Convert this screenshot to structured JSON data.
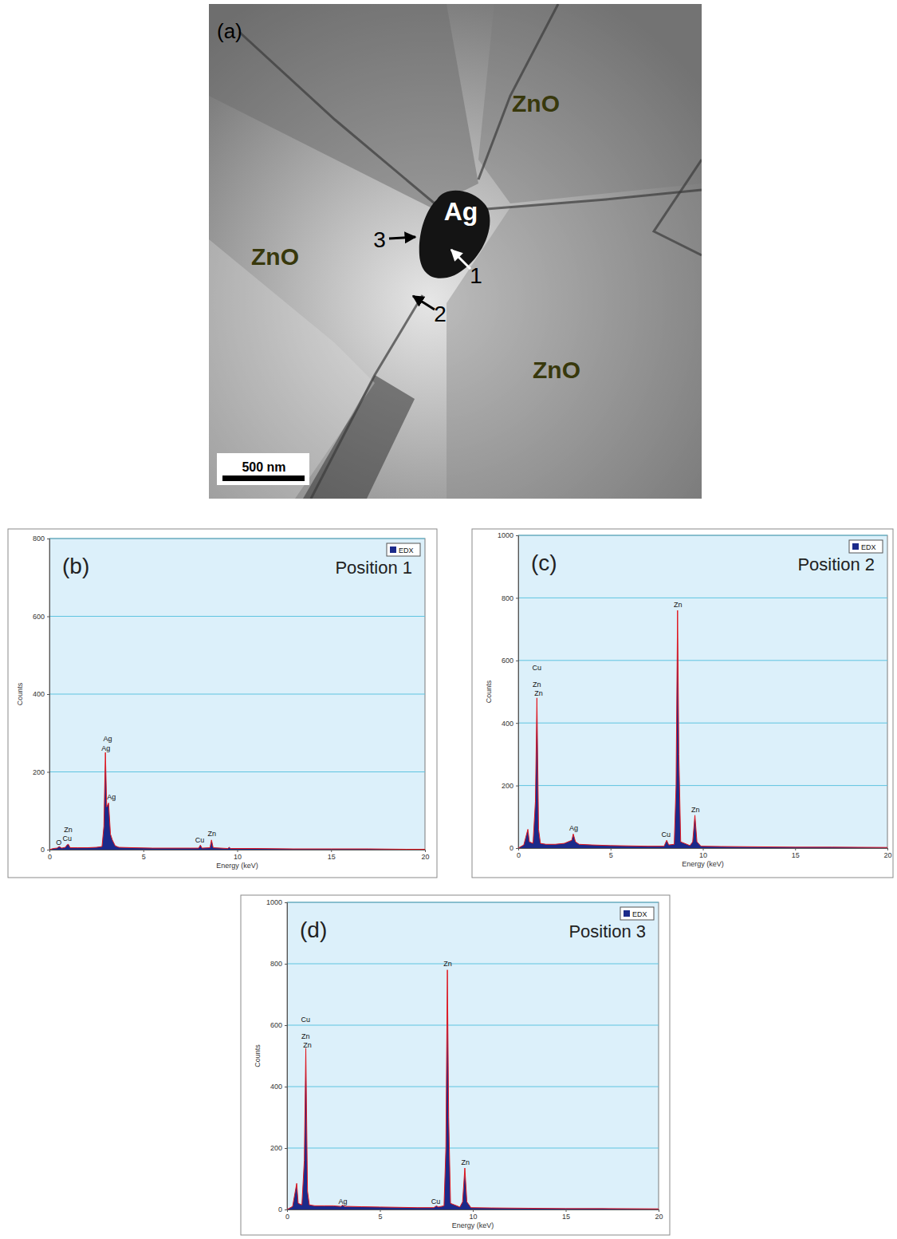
{
  "micrograph": {
    "panel": "(a)",
    "phase_labels": [
      "ZnO",
      "ZnO",
      "ZnO",
      "Ag"
    ],
    "position_markers": [
      "1",
      "2",
      "3"
    ],
    "scale_bar": "500 nm"
  },
  "chart_data": [
    {
      "type": "line",
      "panel": "(b)",
      "title": "Position 1",
      "x_label": "Energy (keV)",
      "y_label": "Counts",
      "xlim": [
        0,
        20
      ],
      "xticks": [
        0,
        5,
        10,
        15,
        20
      ],
      "ylim": [
        0,
        800
      ],
      "yticks": [
        0,
        200,
        400,
        600,
        800
      ],
      "grid": true,
      "legend": "top-right",
      "x": [
        0,
        0.2,
        0.4,
        0.52,
        0.65,
        0.85,
        0.93,
        1.01,
        1.1,
        1.5,
        2.0,
        2.5,
        2.8,
        2.9,
        2.98,
        3.05,
        3.15,
        3.25,
        3.35,
        3.5,
        3.7,
        4.5,
        5.5,
        6.5,
        7.5,
        7.95,
        8.04,
        8.12,
        8.55,
        8.63,
        8.72,
        9.5,
        9.57,
        9.65,
        11,
        13,
        15,
        17,
        19,
        20
      ],
      "series": [
        {
          "name": "EDX",
          "color": "#1b2a8a",
          "values": [
            0,
            3,
            4,
            8,
            4,
            6,
            12,
            14,
            5,
            5,
            5,
            6,
            8,
            60,
            250,
            110,
            120,
            40,
            25,
            10,
            6,
            5,
            4,
            4,
            4,
            4,
            12,
            4,
            5,
            25,
            5,
            3,
            6,
            3,
            3,
            2,
            2,
            2,
            1,
            1
          ]
        }
      ],
      "annotations": [
        {
          "text": "O",
          "x": 0.5,
          "y": 12
        },
        {
          "text": "Zn",
          "x": 1.0,
          "y": 45
        },
        {
          "text": "Cu",
          "x": 0.95,
          "y": 22
        },
        {
          "text": "Ag",
          "x": 3.1,
          "y": 278
        },
        {
          "text": "Ag",
          "x": 3.0,
          "y": 255
        },
        {
          "text": "Ag",
          "x": 3.3,
          "y": 130
        },
        {
          "text": "Cu",
          "x": 8.0,
          "y": 18
        },
        {
          "text": "Zn",
          "x": 8.65,
          "y": 34
        }
      ]
    },
    {
      "type": "line",
      "panel": "(c)",
      "title": "Position 2",
      "x_label": "Energy (keV)",
      "y_label": "Counts",
      "xlim": [
        0,
        20
      ],
      "xticks": [
        0,
        5,
        10,
        15,
        20
      ],
      "ylim": [
        0,
        1000
      ],
      "yticks": [
        0,
        200,
        400,
        600,
        800,
        1000
      ],
      "grid": true,
      "legend": "top-right",
      "x": [
        0,
        0.3,
        0.52,
        0.6,
        0.8,
        0.93,
        1.01,
        1.1,
        1.2,
        1.5,
        2.0,
        2.5,
        2.9,
        2.98,
        3.1,
        3.3,
        4,
        5,
        6,
        7,
        7.9,
        8.04,
        8.15,
        8.45,
        8.55,
        8.63,
        8.7,
        8.8,
        9.3,
        9.45,
        9.57,
        9.68,
        9.9,
        11,
        13,
        15,
        17,
        20
      ],
      "series": [
        {
          "name": "EDX",
          "color": "#1b2a8a",
          "values": [
            0,
            10,
            60,
            20,
            15,
            150,
            480,
            60,
            15,
            12,
            12,
            15,
            25,
            45,
            20,
            12,
            10,
            8,
            7,
            6,
            6,
            25,
            10,
            12,
            200,
            760,
            300,
            20,
            8,
            20,
            105,
            20,
            6,
            5,
            4,
            3,
            3,
            2
          ]
        }
      ],
      "annotations": [
        {
          "text": "Cu",
          "x": 1.0,
          "y": 570
        },
        {
          "text": "Zn",
          "x": 1.0,
          "y": 515
        },
        {
          "text": "Zn",
          "x": 1.1,
          "y": 487
        },
        {
          "text": "Ag",
          "x": 3.0,
          "y": 57
        },
        {
          "text": "Cu",
          "x": 8.0,
          "y": 35
        },
        {
          "text": "Zn",
          "x": 8.65,
          "y": 770
        },
        {
          "text": "Zn",
          "x": 9.6,
          "y": 115
        }
      ]
    },
    {
      "type": "line",
      "panel": "(d)",
      "title": "Position 3",
      "x_label": "Energy (keV)",
      "y_label": "Counts",
      "xlim": [
        0,
        20
      ],
      "xticks": [
        0,
        5,
        10,
        15,
        20
      ],
      "ylim": [
        0,
        1000
      ],
      "yticks": [
        0,
        200,
        400,
        600,
        800,
        1000
      ],
      "grid": true,
      "legend": "top-right",
      "x": [
        0,
        0.3,
        0.52,
        0.6,
        0.8,
        0.93,
        1.01,
        1.1,
        1.2,
        1.5,
        2.0,
        2.5,
        2.9,
        2.98,
        3.1,
        3.3,
        4,
        5,
        6,
        7,
        7.9,
        8.04,
        8.15,
        8.45,
        8.55,
        8.63,
        8.7,
        8.8,
        9.3,
        9.45,
        9.57,
        9.68,
        9.9,
        11,
        13,
        15,
        17,
        20
      ],
      "series": [
        {
          "name": "EDX",
          "color": "#1b2a8a",
          "values": [
            0,
            10,
            85,
            20,
            15,
            160,
            525,
            60,
            15,
            12,
            12,
            12,
            10,
            14,
            10,
            10,
            9,
            8,
            7,
            6,
            6,
            12,
            8,
            12,
            200,
            780,
            300,
            20,
            8,
            25,
            135,
            25,
            6,
            5,
            4,
            3,
            3,
            2
          ]
        }
      ],
      "annotations": [
        {
          "text": "Cu",
          "x": 1.0,
          "y": 610
        },
        {
          "text": "Zn",
          "x": 1.0,
          "y": 555
        },
        {
          "text": "Zn",
          "x": 1.1,
          "y": 527
        },
        {
          "text": "Ag",
          "x": 3.0,
          "y": 18
        },
        {
          "text": "Cu",
          "x": 8.0,
          "y": 18
        },
        {
          "text": "Zn",
          "x": 8.65,
          "y": 792
        },
        {
          "text": "Zn",
          "x": 9.6,
          "y": 145
        }
      ]
    }
  ]
}
